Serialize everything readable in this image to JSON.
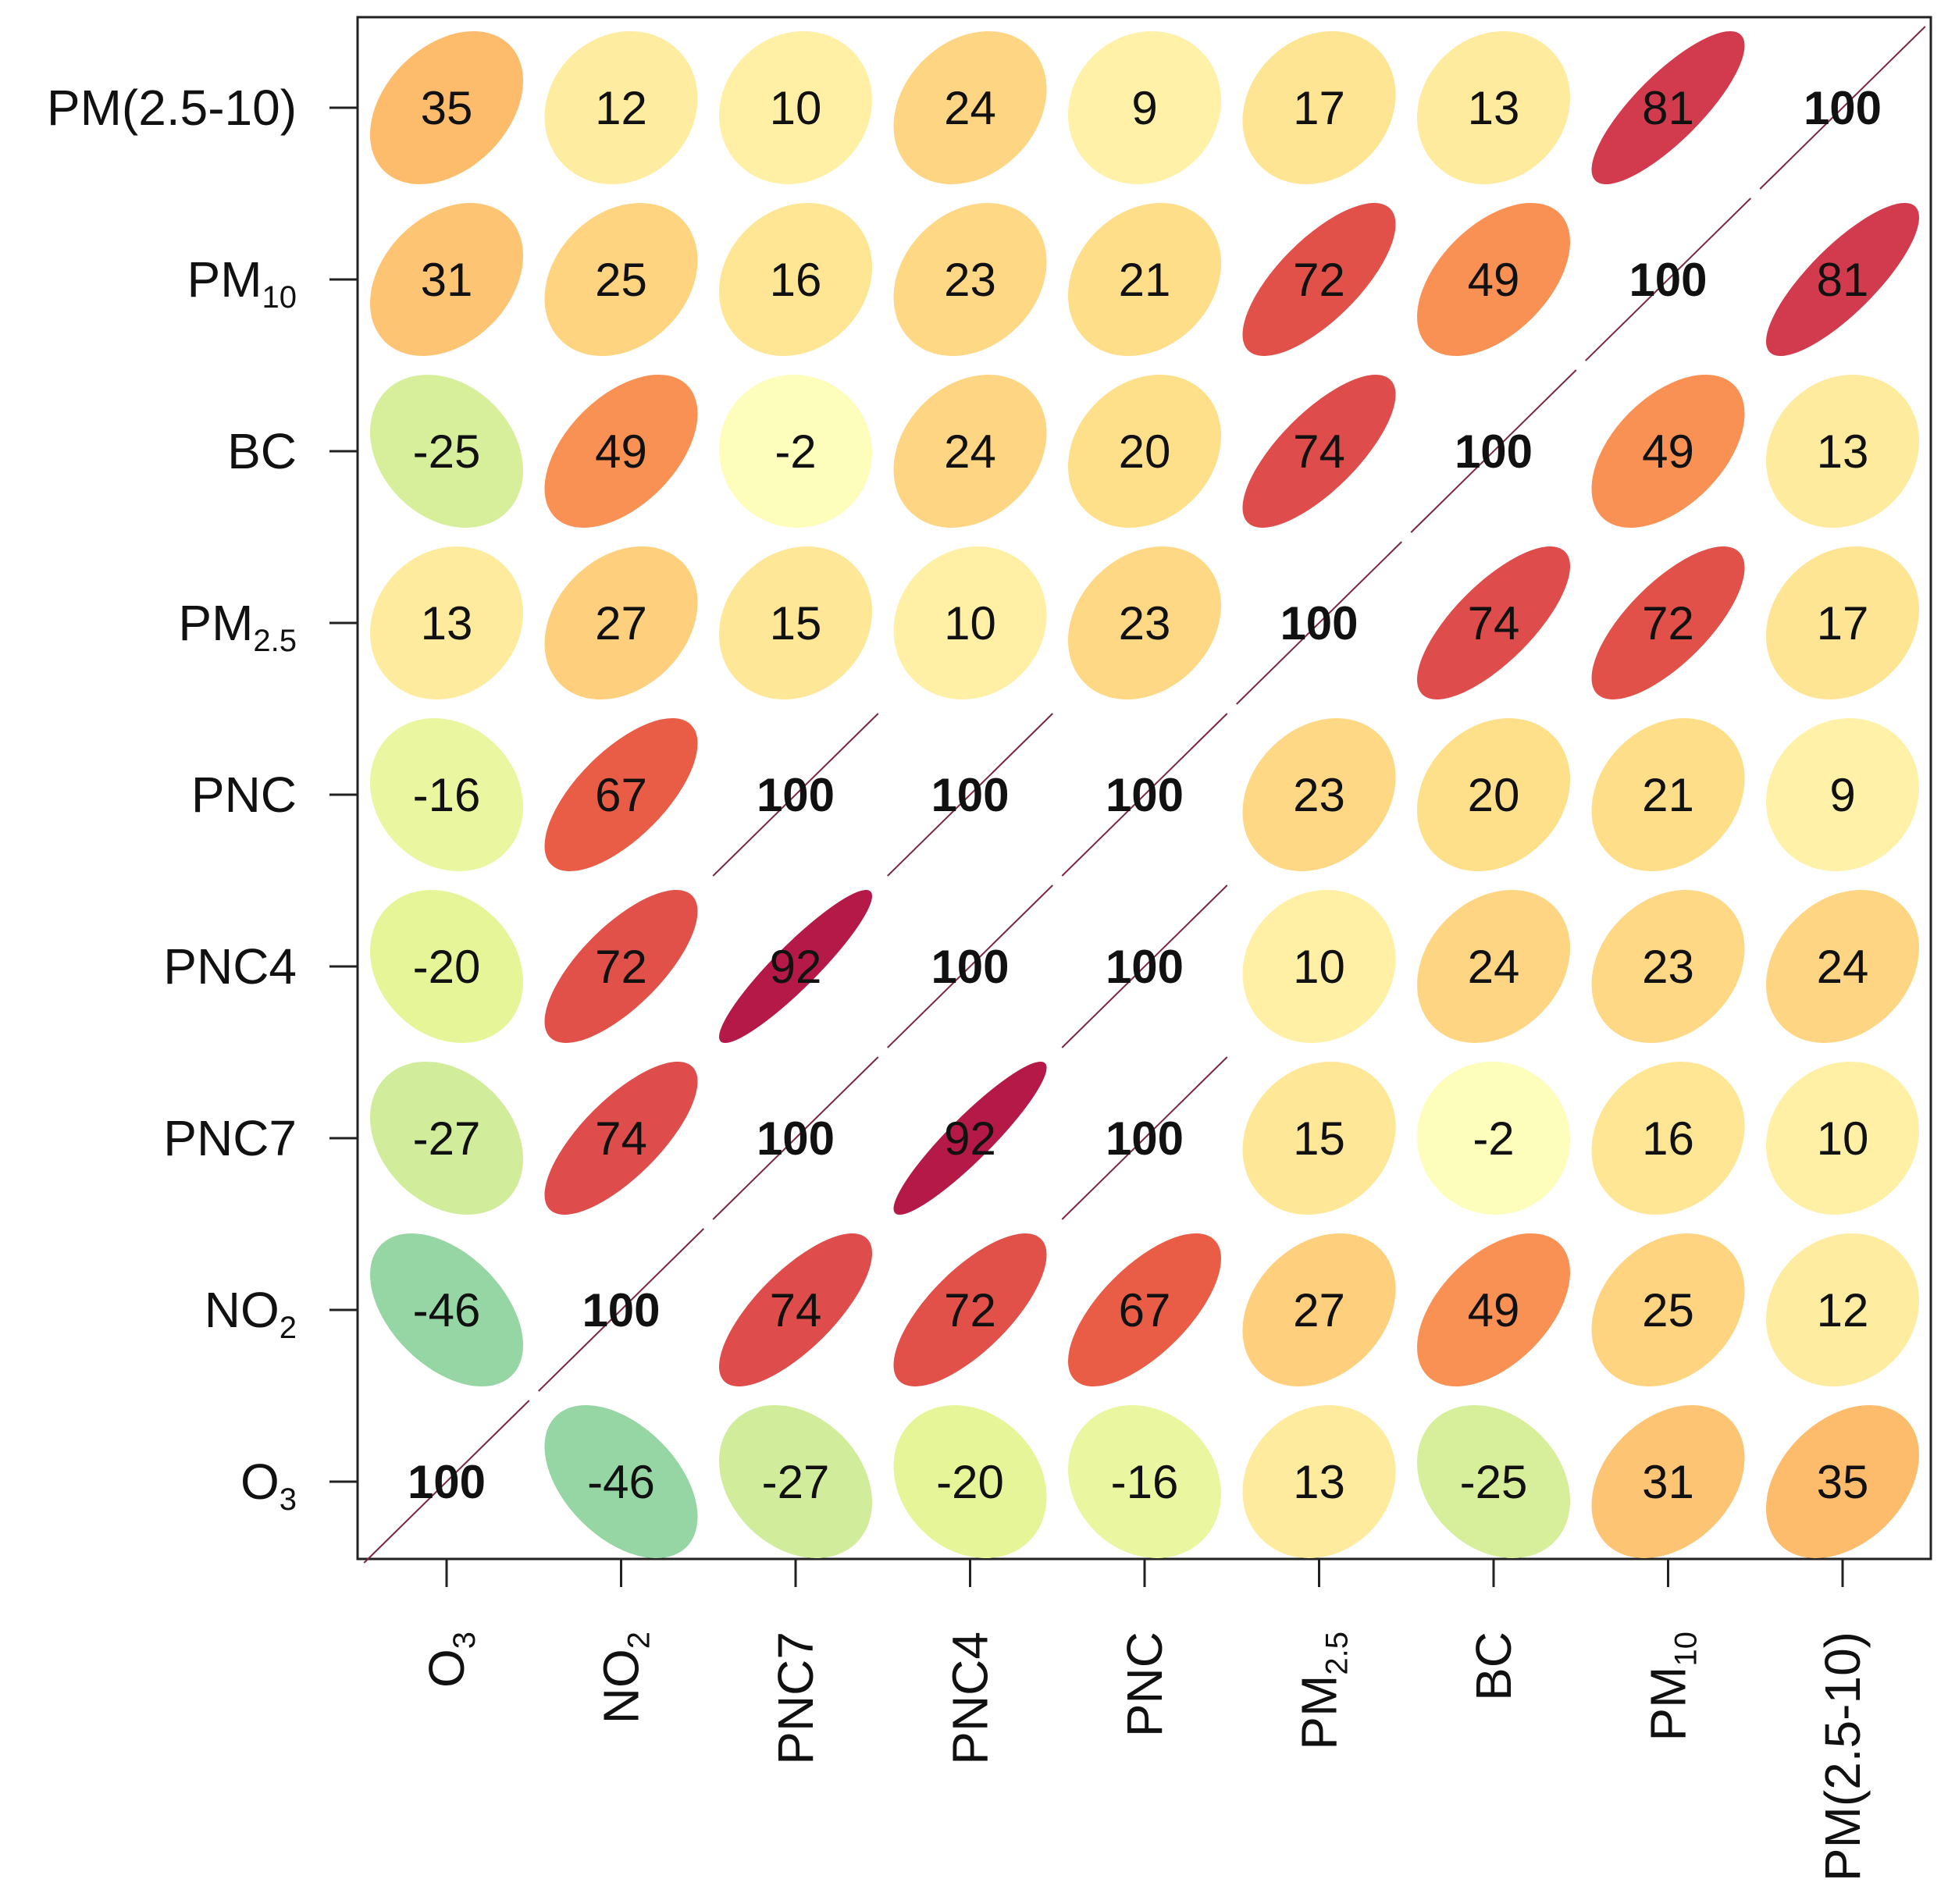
{
  "chart_data": {
    "type": "heatmap",
    "subtype": "correlation-ellipse",
    "title": "",
    "labels": [
      "O3",
      "NO2",
      "PNC7",
      "PNC4",
      "PNC",
      "PM2.5",
      "BC",
      "PM10",
      "PM(2.5-10)"
    ],
    "label_parts": [
      {
        "main": "O",
        "sub": "3"
      },
      {
        "main": "NO",
        "sub": "2"
      },
      {
        "main": "PNC7",
        "sub": ""
      },
      {
        "main": "PNC4",
        "sub": ""
      },
      {
        "main": "PNC",
        "sub": ""
      },
      {
        "main": "PM",
        "sub": "2.5"
      },
      {
        "main": "BC",
        "sub": ""
      },
      {
        "main": "PM",
        "sub": "10"
      },
      {
        "main": "PM(2.5-10)",
        "sub": ""
      }
    ],
    "values": [
      [
        100,
        -46,
        -27,
        -20,
        -16,
        13,
        -25,
        31,
        35
      ],
      [
        -46,
        100,
        74,
        72,
        67,
        27,
        49,
        25,
        12
      ],
      [
        -27,
        74,
        100,
        92,
        100,
        15,
        -2,
        16,
        10
      ],
      [
        -20,
        72,
        92,
        100,
        100,
        10,
        24,
        23,
        24
      ],
      [
        -16,
        67,
        100,
        100,
        100,
        23,
        20,
        21,
        9
      ],
      [
        13,
        27,
        15,
        10,
        23,
        100,
        74,
        72,
        17
      ],
      [
        -25,
        49,
        -2,
        24,
        20,
        74,
        100,
        49,
        13
      ],
      [
        31,
        25,
        16,
        23,
        21,
        72,
        49,
        100,
        81
      ],
      [
        35,
        12,
        10,
        24,
        9,
        17,
        13,
        81,
        100
      ]
    ],
    "value_range": [
      -100,
      100
    ],
    "row_order": "bottom-to-top",
    "colormap": [
      "#5e4fa2",
      "#3288bd",
      "#66c2a5",
      "#abdda4",
      "#e6f598",
      "#ffffbf",
      "#fee08b",
      "#fdae61",
      "#f46d43",
      "#d53e4f",
      "#9e0142"
    ]
  }
}
